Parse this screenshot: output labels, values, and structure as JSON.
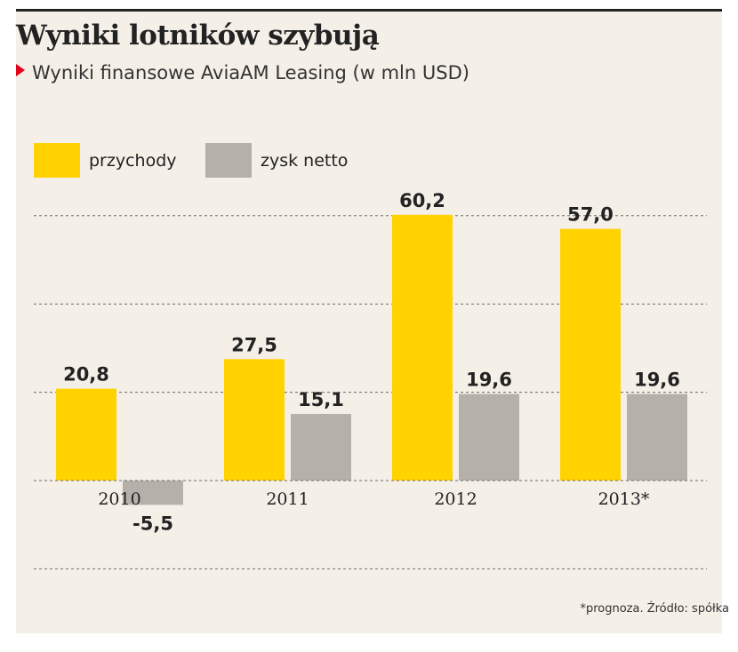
{
  "chart_data": {
    "type": "bar",
    "title": "Wyniki lotników szybują",
    "subtitle": "Wyniki finansowe AviaAM Leasing (w mln USD)",
    "categories": [
      "2010",
      "2011",
      "2012",
      "2013*"
    ],
    "series": [
      {
        "name": "przychody",
        "values": [
          20.8,
          27.5,
          60.2,
          57.0
        ],
        "labels": [
          "20,8",
          "27,5",
          "60,2",
          "57,0"
        ],
        "color": "#ffd200"
      },
      {
        "name": "zysk netto",
        "values": [
          -5.5,
          15.1,
          19.6,
          19.6
        ],
        "labels": [
          "-5,5",
          "15,1",
          "19,6",
          "19,6"
        ],
        "color": "#b5b1aa"
      }
    ],
    "ylim": [
      -20,
      80
    ],
    "grid": true,
    "legend_position": "top-left",
    "footnote": "*prognoza. Źródło: spółka"
  }
}
